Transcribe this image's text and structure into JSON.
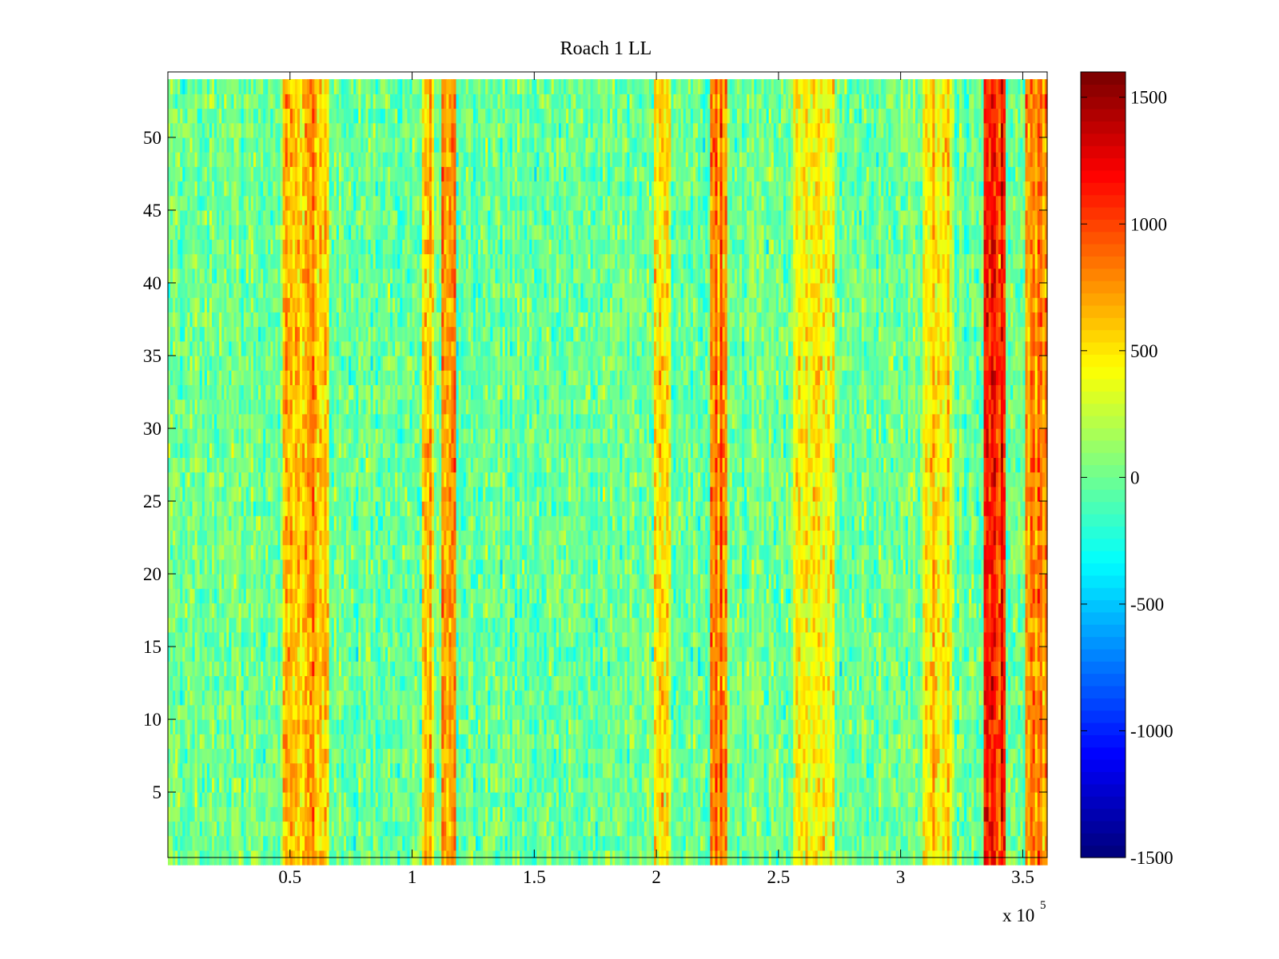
{
  "chart_data": {
    "type": "heatmap",
    "title": "Roach 1 LL",
    "xlabel": "",
    "ylabel": "",
    "x_exponent_label": {
      "prefix": "x 10",
      "exponent": "5"
    },
    "xlim": [
      0,
      3.6
    ],
    "ylim": [
      0.5,
      54.5
    ],
    "x_ticks": [
      {
        "value": 0.5,
        "label": "0.5"
      },
      {
        "value": 1,
        "label": "1"
      },
      {
        "value": 1.5,
        "label": "1.5"
      },
      {
        "value": 2,
        "label": "2"
      },
      {
        "value": 2.5,
        "label": "2.5"
      },
      {
        "value": 3,
        "label": "3"
      },
      {
        "value": 3.5,
        "label": "3.5"
      }
    ],
    "y_ticks": [
      {
        "value": 5,
        "label": "5"
      },
      {
        "value": 10,
        "label": "10"
      },
      {
        "value": 15,
        "label": "15"
      },
      {
        "value": 20,
        "label": "20"
      },
      {
        "value": 25,
        "label": "25"
      },
      {
        "value": 30,
        "label": "30"
      },
      {
        "value": 35,
        "label": "35"
      },
      {
        "value": 40,
        "label": "40"
      },
      {
        "value": 45,
        "label": "45"
      },
      {
        "value": 50,
        "label": "50"
      }
    ],
    "n_rows": 54,
    "n_cols": 360,
    "colormap": "jet",
    "clim": [
      -1500,
      1500
    ],
    "colorbar_top": 1600,
    "colorbar_ticks": [
      {
        "value": -1500,
        "label": "-1500"
      },
      {
        "value": -1000,
        "label": "-1000"
      },
      {
        "value": -500,
        "label": "-500"
      },
      {
        "value": 0,
        "label": "0"
      },
      {
        "value": 500,
        "label": "500"
      },
      {
        "value": 1000,
        "label": "1000"
      },
      {
        "value": 1500,
        "label": "1500"
      }
    ],
    "baseline_value": -60,
    "noise_amplitude": 260,
    "high_bands": [
      {
        "x_start": 0.48,
        "x_end": 0.65,
        "peak": 700
      },
      {
        "x_start": 1.05,
        "x_end": 1.08,
        "peak": 650
      },
      {
        "x_start": 1.13,
        "x_end": 1.17,
        "peak": 850
      },
      {
        "x_start": 2.0,
        "x_end": 2.05,
        "peak": 550
      },
      {
        "x_start": 2.23,
        "x_end": 2.28,
        "peak": 900
      },
      {
        "x_start": 2.57,
        "x_end": 2.72,
        "peak": 500
      },
      {
        "x_start": 3.1,
        "x_end": 3.2,
        "peak": 550
      },
      {
        "x_start": 3.35,
        "x_end": 3.42,
        "peak": 1250
      },
      {
        "x_start": 3.52,
        "x_end": 3.6,
        "peak": 900
      }
    ]
  }
}
